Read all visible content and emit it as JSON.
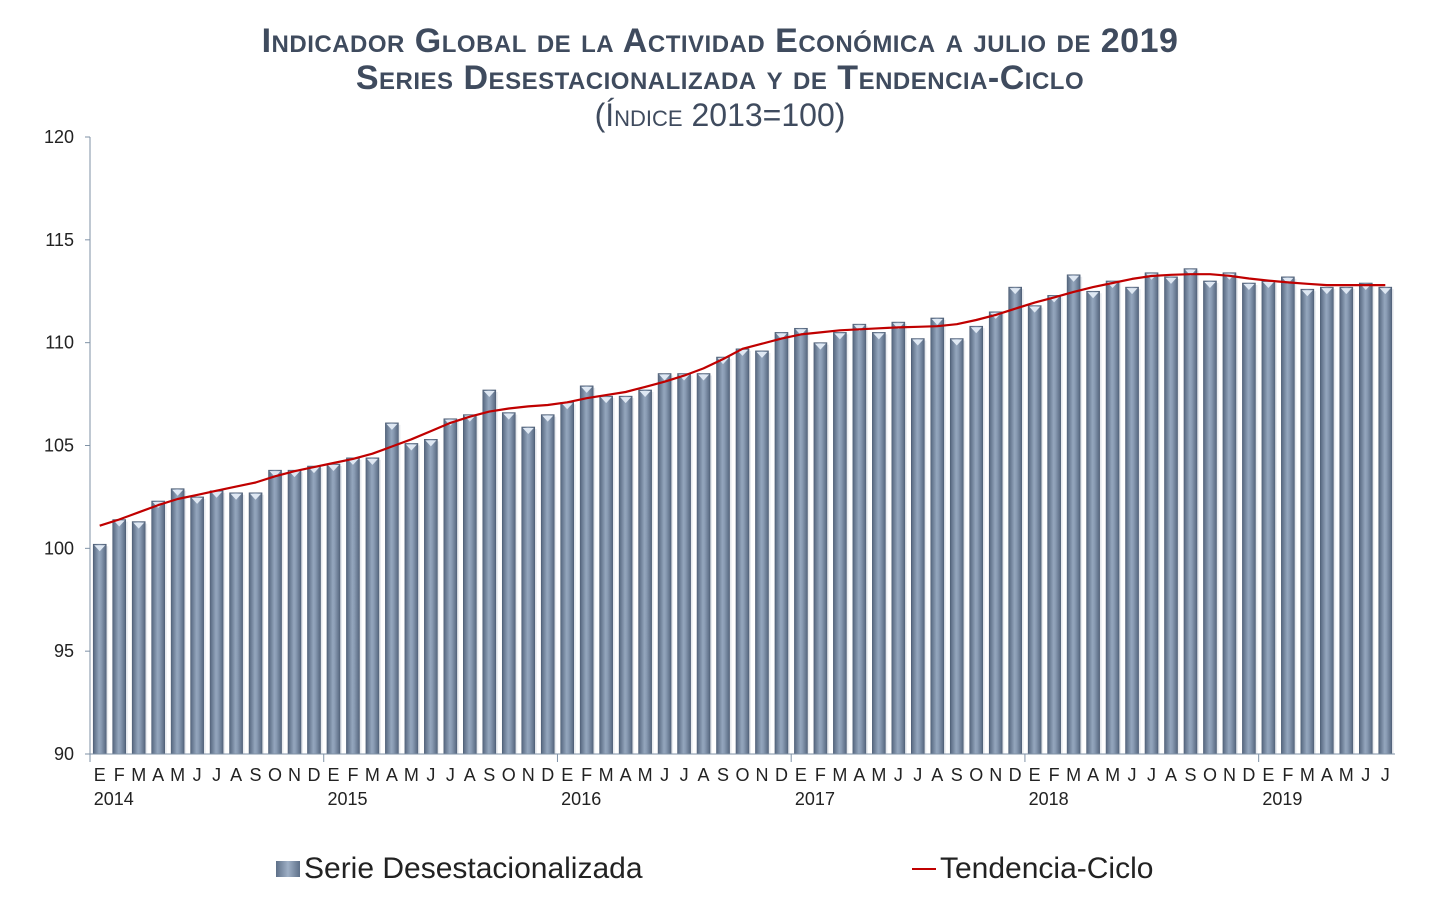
{
  "chart_data": {
    "type": "bar",
    "title": "Indicador Global de la Actividad Económica a julio de 2019",
    "subtitle": "Series Desestacionalizada y de Tendencia-Ciclo",
    "unit_note": "(Índice 2013=100)",
    "xlabel": "",
    "ylabel": "",
    "ylim": [
      90,
      120
    ],
    "yticks": [
      "90",
      "95",
      "100",
      "105",
      "110",
      "115",
      "120"
    ],
    "grid": false,
    "legend_position": "bottom",
    "month_labels": [
      "E",
      "F",
      "M",
      "A",
      "M",
      "J",
      "J",
      "A",
      "S",
      "O",
      "N",
      "D"
    ],
    "years": [
      "2014",
      "2015",
      "2016",
      "2017",
      "2018",
      "2019"
    ],
    "colors": {
      "bars": "#8094b0",
      "trend": "#c00000",
      "title": "#3f4b5e"
    },
    "series": [
      {
        "name": "Serie Desestacionalizada",
        "type": "bar",
        "values": [
          100.2,
          101.4,
          101.3,
          102.3,
          102.9,
          102.5,
          102.8,
          102.7,
          102.7,
          103.8,
          103.8,
          104.0,
          104.1,
          104.4,
          104.4,
          106.1,
          105.1,
          105.3,
          106.3,
          106.5,
          107.7,
          106.6,
          105.9,
          106.5,
          107.1,
          107.9,
          107.4,
          107.4,
          107.7,
          108.5,
          108.5,
          108.5,
          109.3,
          109.7,
          109.6,
          110.5,
          110.7,
          110.0,
          110.5,
          110.9,
          110.5,
          111.0,
          110.2,
          111.2,
          110.2,
          110.8,
          111.5,
          112.7,
          111.8,
          112.3,
          113.3,
          112.5,
          113.0,
          112.7,
          113.4,
          113.2,
          113.6,
          113.0,
          113.4,
          112.9,
          113.0,
          113.2,
          112.6,
          112.7,
          112.7,
          112.9,
          112.7
        ]
      },
      {
        "name": "Tendencia-Ciclo",
        "type": "line",
        "values": [
          101.1,
          101.4,
          101.75,
          102.1,
          102.4,
          102.6,
          102.8,
          103.0,
          103.2,
          103.5,
          103.75,
          103.95,
          104.15,
          104.35,
          104.6,
          104.95,
          105.3,
          105.7,
          106.1,
          106.4,
          106.65,
          106.8,
          106.9,
          106.97,
          107.1,
          107.3,
          107.45,
          107.6,
          107.85,
          108.1,
          108.4,
          108.75,
          109.2,
          109.7,
          109.95,
          110.2,
          110.4,
          110.5,
          110.6,
          110.65,
          110.7,
          110.74,
          110.77,
          110.8,
          110.9,
          111.1,
          111.35,
          111.65,
          111.95,
          112.2,
          112.47,
          112.7,
          112.9,
          113.1,
          113.24,
          113.3,
          113.33,
          113.33,
          113.25,
          113.12,
          113.02,
          112.93,
          112.86,
          112.8,
          112.8,
          112.8,
          112.8
        ]
      }
    ]
  }
}
